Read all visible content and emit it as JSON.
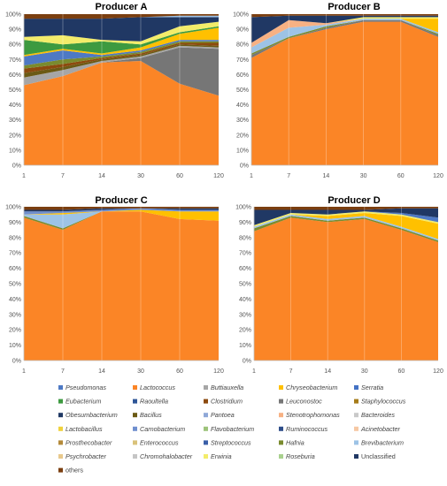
{
  "chart_data": {
    "type": "area",
    "stacked": "percent",
    "x_categories": [
      "1",
      "7",
      "14",
      "30",
      "60",
      "120"
    ],
    "y_ticks": [
      "0%",
      "10%",
      "20%",
      "30%",
      "40%",
      "50%",
      "60%",
      "70%",
      "80%",
      "90%",
      "100%"
    ],
    "ylim": [
      0,
      100
    ],
    "legend": {
      "placement": "bottom",
      "entries": [
        {
          "name": "Pseudomonas",
          "color": "#4e79c4"
        },
        {
          "name": "Lactococcus",
          "color": "#fb8526"
        },
        {
          "name": "Buttiauxella",
          "color": "#a6a6a6"
        },
        {
          "name": "Chryseobacterium",
          "color": "#ffc000"
        },
        {
          "name": "Serratia",
          "color": "#4472c4"
        },
        {
          "name": "Eubacterium",
          "color": "#3d9a40"
        },
        {
          "name": "Raoultella",
          "color": "#2e5597"
        },
        {
          "name": "Clostridium",
          "color": "#8c4a0e"
        },
        {
          "name": "Leuconostoc",
          "color": "#767676"
        },
        {
          "name": "Staphylococcus",
          "color": "#a67c1a"
        },
        {
          "name": "Obesumbacterium",
          "color": "#1f3864"
        },
        {
          "name": "Bacillus",
          "color": "#6b5a14"
        },
        {
          "name": "Pantoea",
          "color": "#8fa8d8"
        },
        {
          "name": "Stenotrophomonas",
          "color": "#f7b183"
        },
        {
          "name": "Bacteroides",
          "color": "#c9c9c9"
        },
        {
          "name": "Lactobacillus",
          "color": "#f0d23c"
        },
        {
          "name": "Carnobacterium",
          "color": "#6f8fcf"
        },
        {
          "name": "Flavobacterium",
          "color": "#9dc37a"
        },
        {
          "name": "Ruminococcus",
          "color": "#2f4e8a"
        },
        {
          "name": "Acinetobacter",
          "color": "#f6c8a3"
        },
        {
          "name": "Prosthecobacter",
          "color": "#b48a3a"
        },
        {
          "name": "Enterococcus",
          "color": "#d9c27a"
        },
        {
          "name": "Streptococcus",
          "color": "#3a5fa8"
        },
        {
          "name": "Hafnia",
          "color": "#7a8b2e"
        },
        {
          "name": "Brevibacterium",
          "color": "#9dc3e6"
        },
        {
          "name": "Psychrobacter",
          "color": "#e8c98c"
        },
        {
          "name": "Chromohalobacter",
          "color": "#c5c5c5"
        },
        {
          "name": "Erwinia",
          "color": "#f3ec6a"
        },
        {
          "name": "Roseburia",
          "color": "#a9d18e"
        },
        {
          "name": "Unclassified",
          "color": "#203864"
        },
        {
          "name": "others",
          "color": "#7b3f10"
        }
      ]
    },
    "panels": [
      {
        "title": "Producer A",
        "series": [
          {
            "name": "Lactococcus",
            "values": [
              53,
              59,
              68,
              69,
              54,
              46
            ]
          },
          {
            "name": "Leuconostoc",
            "values": [
              0,
              0,
              0,
              2,
              24,
              31
            ]
          },
          {
            "name": "Buttiauxella",
            "values": [
              5,
              4,
              1,
              1,
              1,
              1
            ]
          },
          {
            "name": "Bacillus",
            "values": [
              3,
              2,
              1,
              1,
              1,
              1
            ]
          },
          {
            "name": "Clostridium",
            "values": [
              3,
              2,
              1,
              1,
              1,
              2
            ]
          },
          {
            "name": "Hafnia",
            "values": [
              2,
              3,
              1,
              1,
              1,
              1
            ]
          },
          {
            "name": "Pseudomonas",
            "values": [
              6,
              6,
              1,
              1,
              1,
              1
            ]
          },
          {
            "name": "Chryseobacterium",
            "values": [
              1,
              1,
              1,
              2,
              4,
              8
            ]
          },
          {
            "name": "Eubacterium",
            "values": [
              10,
              3,
              8,
              2,
              1,
              1
            ]
          },
          {
            "name": "Erwinia",
            "values": [
              2,
              6,
              1,
              2,
              4,
              3
            ]
          },
          {
            "name": "Unclassified",
            "values": [
              12,
              11,
              14,
              16,
              6,
              3
            ]
          },
          {
            "name": "Brevibacterium",
            "values": [
              0,
              0,
              0,
              0,
              1,
              1
            ]
          },
          {
            "name": "others",
            "values": [
              3,
              3,
              3,
              2,
              1,
              1
            ]
          }
        ]
      },
      {
        "title": "Producer B",
        "series": [
          {
            "name": "Lactococcus",
            "values": [
              71,
              84,
              90,
              95,
              95,
              85
            ]
          },
          {
            "name": "Leuconostoc",
            "values": [
              2,
              0,
              1,
              1,
              1,
              1
            ]
          },
          {
            "name": "Hafnia",
            "values": [
              1,
              1,
              1,
              0,
              0,
              1
            ]
          },
          {
            "name": "Brevibacterium",
            "values": [
              4,
              6,
              1,
              1,
              1,
              1
            ]
          },
          {
            "name": "Stenotrophomonas",
            "values": [
              3,
              5,
              1,
              0,
              0,
              0
            ]
          },
          {
            "name": "Chryseobacterium",
            "values": [
              0,
              0,
              0,
              0,
              0,
              9
            ]
          },
          {
            "name": "Erwinia",
            "values": [
              0,
              0,
              0,
              1,
              1,
              1
            ]
          },
          {
            "name": "Unclassified",
            "values": [
              17,
              3,
              5,
              1,
              1,
              1
            ]
          },
          {
            "name": "others",
            "values": [
              2,
              1,
              1,
              1,
              1,
              1
            ]
          }
        ]
      },
      {
        "title": "Producer C",
        "series": [
          {
            "name": "Lactococcus",
            "values": [
              93,
              85,
              97,
              97,
              92,
              91
            ]
          },
          {
            "name": "Hafnia",
            "values": [
              1,
              1,
              0,
              0,
              0,
              0
            ]
          },
          {
            "name": "Brevibacterium",
            "values": [
              1,
              9,
              0,
              0,
              0,
              0
            ]
          },
          {
            "name": "Chryseobacterium",
            "values": [
              0,
              1,
              0,
              1,
              5,
              6
            ]
          },
          {
            "name": "Carnobacterium",
            "values": [
              2,
              1,
              1,
              1,
              1,
              1
            ]
          },
          {
            "name": "Unclassified",
            "values": [
              1,
              1,
              1,
              0,
              1,
              1
            ]
          },
          {
            "name": "others",
            "values": [
              2,
              2,
              1,
              1,
              1,
              1
            ]
          }
        ]
      },
      {
        "title": "Producer D",
        "series": [
          {
            "name": "Lactococcus",
            "values": [
              84,
              93,
              90,
              92,
              85,
              77
            ]
          },
          {
            "name": "Hafnia",
            "values": [
              2,
              1,
              1,
              1,
              1,
              1
            ]
          },
          {
            "name": "Brevibacterium",
            "values": [
              1,
              1,
              1,
              1,
              1,
              1
            ]
          },
          {
            "name": "Chryseobacterium",
            "values": [
              0,
              0,
              2,
              2,
              7,
              10
            ]
          },
          {
            "name": "Erwinia",
            "values": [
              1,
              1,
              1,
              1,
              1,
              1
            ]
          },
          {
            "name": "Pseudomonas",
            "values": [
              0,
              0,
              0,
              0,
              1,
              3
            ]
          },
          {
            "name": "Unclassified",
            "values": [
              10,
              2,
              3,
              1,
              3,
              6
            ]
          },
          {
            "name": "others",
            "values": [
              2,
              2,
              2,
              2,
              1,
              1
            ]
          }
        ]
      }
    ]
  }
}
